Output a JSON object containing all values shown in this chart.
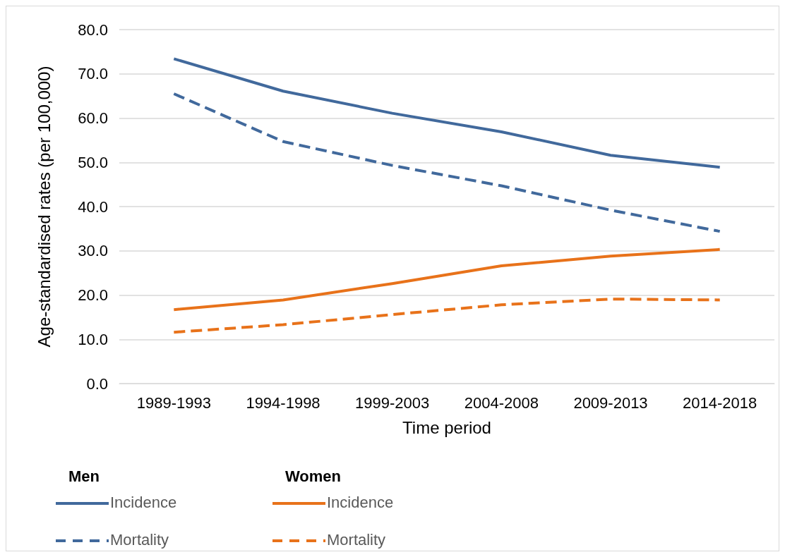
{
  "chart_data": {
    "type": "line",
    "xlabel": "Time period",
    "ylabel": "Age-standardised rates (per 100,000)",
    "categories": [
      "1989-1993",
      "1994-1998",
      "1999-2003",
      "2004-2008",
      "2009-2013",
      "2014-2018"
    ],
    "series": [
      {
        "name": "Incidence",
        "color": "#41699c",
        "line_style": "solid",
        "values": [
          73.4,
          66.1,
          61.1,
          56.9,
          51.6,
          48.9
        ]
      },
      {
        "name": "Mortality",
        "color": "#41699c",
        "line_style": "dashed",
        "values": [
          65.5,
          54.7,
          49.3,
          44.7,
          39.2,
          34.4
        ]
      },
      {
        "name": "Incidence",
        "color": "#e8721a",
        "line_style": "solid",
        "values": [
          16.7,
          18.9,
          22.6,
          26.6,
          28.8,
          30.3
        ]
      },
      {
        "name": "Mortality",
        "color": "#e8721a",
        "line_style": "dashed",
        "values": [
          11.6,
          13.3,
          15.6,
          17.8,
          19.1,
          18.9
        ]
      }
    ],
    "annotations": [
      "Men",
      "Women"
    ],
    "ylim": [
      0,
      80
    ],
    "yticks": [
      {
        "value": 0,
        "label": "0.0"
      },
      {
        "value": 10,
        "label": "10.0"
      },
      {
        "value": 20,
        "label": "20.0"
      },
      {
        "value": 30,
        "label": "30.0"
      },
      {
        "value": 40,
        "label": "40.0"
      },
      {
        "value": 50,
        "label": "50.0"
      },
      {
        "value": 60,
        "label": "60.0"
      },
      {
        "value": 70,
        "label": "70.0"
      },
      {
        "value": 80,
        "label": "80.0"
      }
    ],
    "grid": "y",
    "legend": "bottom",
    "marker": "none"
  }
}
